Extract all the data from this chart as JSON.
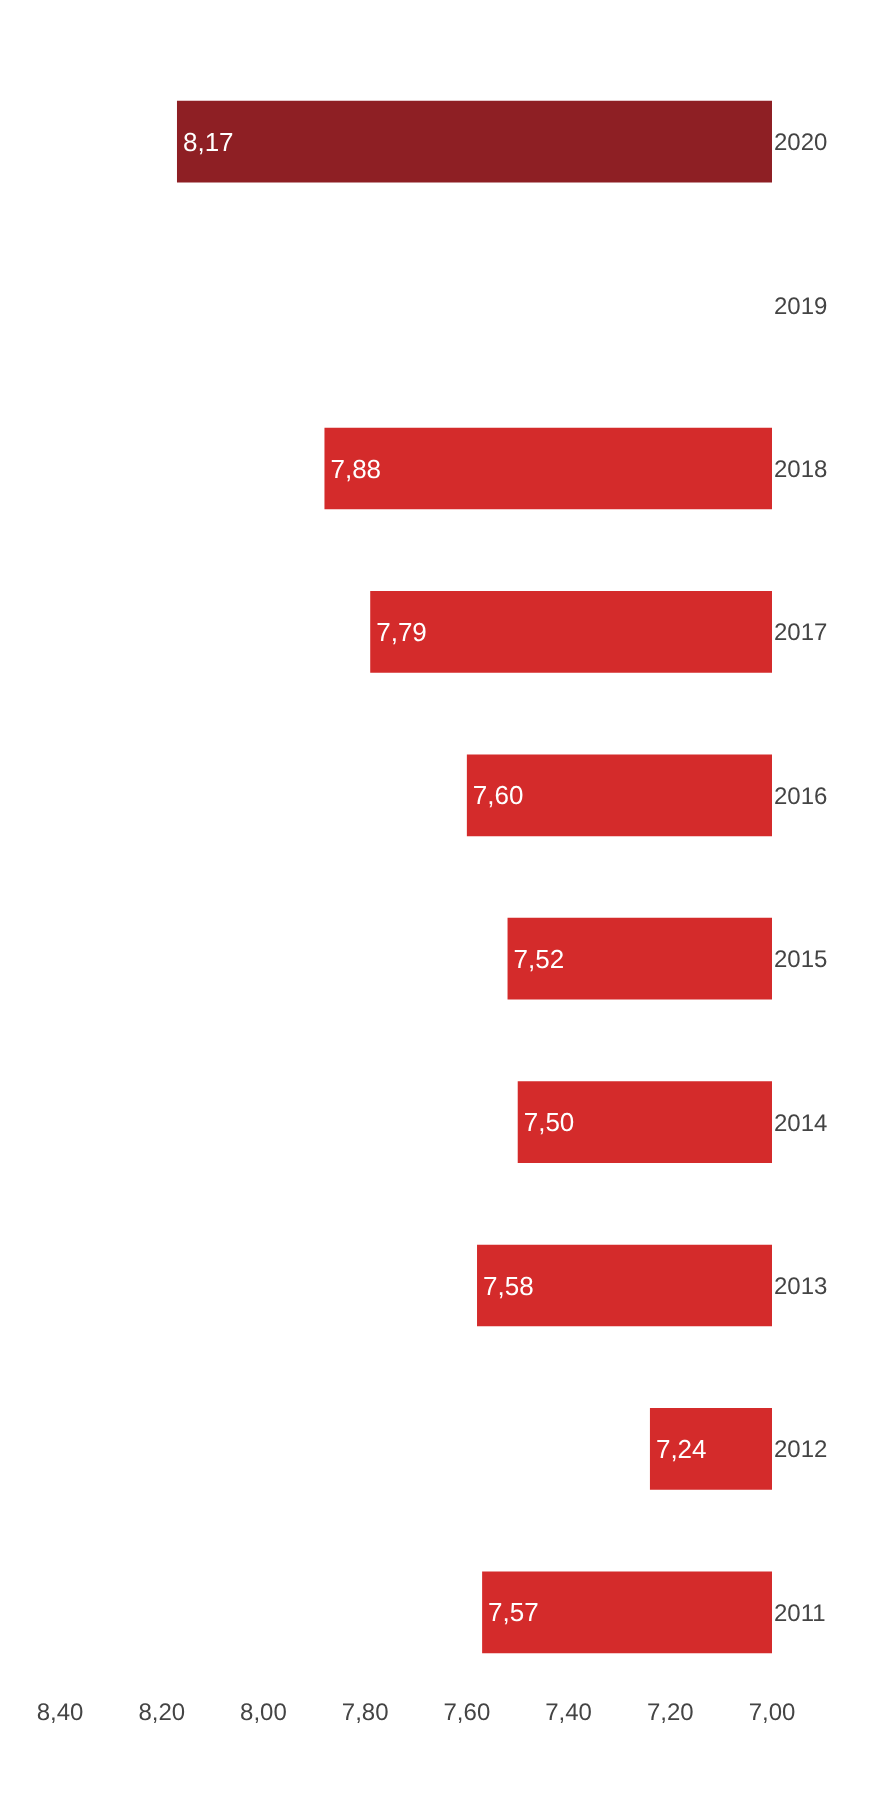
{
  "chart_data": {
    "type": "bar",
    "orientation": "horizontal",
    "categories": [
      "2020",
      "2019",
      "2018",
      "2017",
      "2016",
      "2015",
      "2014",
      "2013",
      "2012",
      "2011"
    ],
    "values": [
      8.17,
      null,
      7.88,
      7.79,
      7.6,
      7.52,
      7.5,
      7.58,
      7.24,
      7.57
    ],
    "colors": [
      "#8e1f24",
      "#d42b2b",
      "#d42b2b",
      "#d42b2b",
      "#d42b2b",
      "#d42b2b",
      "#d42b2b",
      "#d42b2b",
      "#d42b2b",
      "#d42b2b"
    ],
    "value_labels": [
      "8,17",
      null,
      "7,88",
      "7,79",
      "7,60",
      "7,52",
      "7,50",
      "7,58",
      "7,24",
      "7,57"
    ],
    "xlim": [
      8.4,
      7.0
    ],
    "xticks": [
      {
        "value": 8.4,
        "label": "8,40"
      },
      {
        "value": 8.2,
        "label": "8,20"
      },
      {
        "value": 8.0,
        "label": "8,00"
      },
      {
        "value": 7.8,
        "label": "7,80"
      },
      {
        "value": 7.6,
        "label": "7,60"
      },
      {
        "value": 7.4,
        "label": "7,40"
      },
      {
        "value": 7.2,
        "label": "7,20"
      },
      {
        "value": 7.0,
        "label": "7,00"
      }
    ],
    "legend": false
  }
}
